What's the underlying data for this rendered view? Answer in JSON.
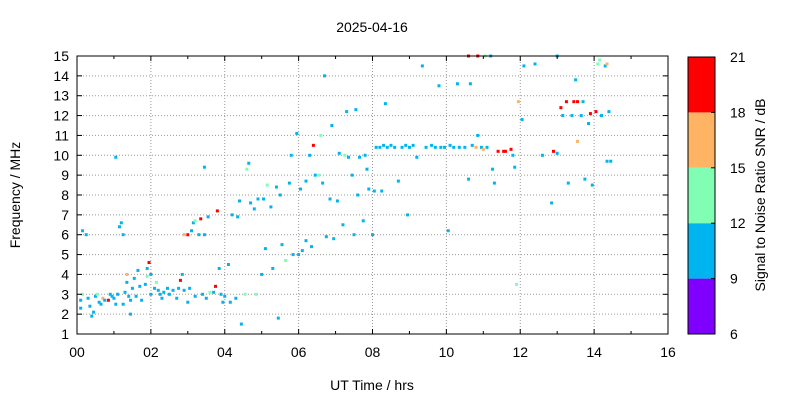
{
  "chart_data": {
    "type": "scatter",
    "title": "2025-04-16",
    "xlabel": "UT Time / hrs",
    "ylabel": "Frequency / MHz",
    "xlim": [
      0,
      16
    ],
    "ylim": [
      1,
      15
    ],
    "xticks": [
      "00",
      "02",
      "04",
      "06",
      "08",
      "10",
      "12",
      "14",
      "16"
    ],
    "yticks": [
      "1",
      "2",
      "3",
      "4",
      "5",
      "6",
      "7",
      "8",
      "9",
      "10",
      "11",
      "12",
      "13",
      "14",
      "15"
    ],
    "grid": true,
    "colorbar": {
      "label": "Signal to Noise Ratio SNR / dB",
      "range": [
        6,
        21
      ],
      "ticks": [
        "6",
        "9",
        "12",
        "15",
        "18",
        "21"
      ],
      "bands": [
        {
          "from": 6,
          "to": 9,
          "color": "#8000ff"
        },
        {
          "from": 9,
          "to": 12,
          "color": "#00b4f0"
        },
        {
          "from": 12,
          "to": 15,
          "color": "#80ffb4"
        },
        {
          "from": 15,
          "to": 18,
          "color": "#ffb464"
        },
        {
          "from": 18,
          "to": 21,
          "color": "#ff0000"
        }
      ]
    },
    "points": [
      [
        0.1,
        2.3,
        10
      ],
      [
        0.1,
        2.7,
        10
      ],
      [
        0.15,
        3.0,
        13
      ],
      [
        0.15,
        6.2,
        10
      ],
      [
        0.25,
        6.0,
        10
      ],
      [
        0.3,
        2.8,
        10
      ],
      [
        0.35,
        2.4,
        10
      ],
      [
        0.4,
        1.9,
        10
      ],
      [
        0.45,
        2.1,
        10
      ],
      [
        0.5,
        2.9,
        10
      ],
      [
        0.55,
        3.0,
        13
      ],
      [
        0.6,
        2.6,
        10
      ],
      [
        0.65,
        2.5,
        10
      ],
      [
        0.7,
        2.8,
        16
      ],
      [
        0.75,
        2.7,
        10
      ],
      [
        0.85,
        2.7,
        19
      ],
      [
        0.9,
        3.0,
        10
      ],
      [
        0.95,
        2.9,
        10
      ],
      [
        1.0,
        2.8,
        10
      ],
      [
        1.05,
        2.5,
        10
      ],
      [
        1.05,
        9.9,
        10
      ],
      [
        1.1,
        3.0,
        10
      ],
      [
        1.15,
        6.4,
        10
      ],
      [
        1.2,
        6.6,
        10
      ],
      [
        1.25,
        2.5,
        10
      ],
      [
        1.25,
        6.0,
        10
      ],
      [
        1.3,
        3.1,
        10
      ],
      [
        1.35,
        3.6,
        10
      ],
      [
        1.35,
        4.0,
        16
      ],
      [
        1.4,
        2.9,
        10
      ],
      [
        1.45,
        2.0,
        10
      ],
      [
        1.45,
        2.7,
        10
      ],
      [
        1.5,
        3.3,
        10
      ],
      [
        1.55,
        3.8,
        10
      ],
      [
        1.6,
        2.9,
        10
      ],
      [
        1.65,
        4.2,
        10
      ],
      [
        1.7,
        3.4,
        10
      ],
      [
        1.75,
        2.7,
        10
      ],
      [
        1.85,
        3.5,
        10
      ],
      [
        1.9,
        3.9,
        13
      ],
      [
        1.9,
        4.3,
        10
      ],
      [
        1.95,
        4.6,
        19
      ],
      [
        2.0,
        3.0,
        10
      ],
      [
        2.0,
        4.0,
        10
      ],
      [
        2.1,
        3.3,
        10
      ],
      [
        2.15,
        3.6,
        13
      ],
      [
        2.2,
        3.2,
        10
      ],
      [
        2.25,
        3.0,
        10
      ],
      [
        2.3,
        2.8,
        10
      ],
      [
        2.35,
        3.1,
        10
      ],
      [
        2.45,
        3.3,
        10
      ],
      [
        2.5,
        3.0,
        10
      ],
      [
        2.6,
        3.2,
        10
      ],
      [
        2.7,
        2.8,
        10
      ],
      [
        2.75,
        3.3,
        10
      ],
      [
        2.8,
        3.7,
        19
      ],
      [
        2.85,
        4.0,
        10
      ],
      [
        2.9,
        3.2,
        10
      ],
      [
        2.9,
        6.0,
        16
      ],
      [
        3.0,
        6.0,
        19
      ],
      [
        3.0,
        2.6,
        10
      ],
      [
        3.05,
        3.3,
        10
      ],
      [
        3.1,
        6.2,
        10
      ],
      [
        3.15,
        6.6,
        10
      ],
      [
        3.2,
        2.9,
        10
      ],
      [
        3.2,
        6.7,
        13
      ],
      [
        3.3,
        6.0,
        10
      ],
      [
        3.35,
        6.8,
        19
      ],
      [
        3.4,
        3.0,
        10
      ],
      [
        3.45,
        6.0,
        10
      ],
      [
        3.45,
        9.4,
        10
      ],
      [
        3.5,
        2.8,
        10
      ],
      [
        3.55,
        6.9,
        10
      ],
      [
        3.6,
        3.1,
        13
      ],
      [
        3.7,
        3.1,
        10
      ],
      [
        3.75,
        3.4,
        19
      ],
      [
        3.8,
        7.2,
        19
      ],
      [
        3.85,
        4.3,
        10
      ],
      [
        3.9,
        3.0,
        10
      ],
      [
        3.95,
        2.6,
        10
      ],
      [
        4.0,
        2.9,
        10
      ],
      [
        4.1,
        4.5,
        10
      ],
      [
        4.15,
        2.6,
        10
      ],
      [
        4.2,
        7.0,
        10
      ],
      [
        4.3,
        2.8,
        10
      ],
      [
        4.35,
        6.9,
        10
      ],
      [
        4.4,
        7.7,
        10
      ],
      [
        4.45,
        1.5,
        10
      ],
      [
        4.55,
        3.0,
        13
      ],
      [
        4.6,
        9.3,
        13
      ],
      [
        4.65,
        9.6,
        10
      ],
      [
        4.7,
        7.6,
        10
      ],
      [
        4.8,
        7.3,
        10
      ],
      [
        4.85,
        3.0,
        13
      ],
      [
        4.9,
        7.8,
        10
      ],
      [
        5.0,
        4.0,
        10
      ],
      [
        5.05,
        7.8,
        10
      ],
      [
        5.1,
        5.3,
        10
      ],
      [
        5.15,
        8.5,
        13
      ],
      [
        5.25,
        7.4,
        10
      ],
      [
        5.3,
        4.3,
        10
      ],
      [
        5.4,
        8.4,
        10
      ],
      [
        5.45,
        1.8,
        10
      ],
      [
        5.5,
        8.0,
        10
      ],
      [
        5.55,
        5.5,
        10
      ],
      [
        5.65,
        4.7,
        13
      ],
      [
        5.75,
        8.6,
        10
      ],
      [
        5.8,
        10.0,
        10
      ],
      [
        5.85,
        5.0,
        10
      ],
      [
        5.95,
        11.1,
        10
      ],
      [
        6.0,
        5.0,
        10
      ],
      [
        6.05,
        8.3,
        10
      ],
      [
        6.1,
        5.2,
        10
      ],
      [
        6.2,
        5.7,
        10
      ],
      [
        6.2,
        8.7,
        10
      ],
      [
        6.3,
        10.0,
        10
      ],
      [
        6.35,
        5.4,
        10
      ],
      [
        6.4,
        10.5,
        19
      ],
      [
        6.45,
        9.0,
        10
      ],
      [
        6.55,
        9.0,
        13
      ],
      [
        6.6,
        11.0,
        13
      ],
      [
        6.65,
        8.6,
        10
      ],
      [
        6.7,
        14.0,
        10
      ],
      [
        6.75,
        5.9,
        10
      ],
      [
        6.85,
        7.8,
        10
      ],
      [
        6.9,
        11.5,
        10
      ],
      [
        6.95,
        5.8,
        10
      ],
      [
        7.05,
        7.7,
        10
      ],
      [
        7.1,
        10.1,
        10
      ],
      [
        7.2,
        6.5,
        10
      ],
      [
        7.25,
        10.0,
        13
      ],
      [
        7.3,
        12.2,
        10
      ],
      [
        7.35,
        9.9,
        10
      ],
      [
        7.45,
        9.0,
        10
      ],
      [
        7.5,
        6.0,
        10
      ],
      [
        7.55,
        12.3,
        10
      ],
      [
        7.6,
        8.0,
        10
      ],
      [
        7.65,
        9.9,
        10
      ],
      [
        7.75,
        6.7,
        10
      ],
      [
        7.8,
        10.0,
        10
      ],
      [
        7.85,
        9.3,
        10
      ],
      [
        7.9,
        8.3,
        10
      ],
      [
        8.0,
        6.0,
        10
      ],
      [
        8.05,
        8.2,
        10
      ],
      [
        8.1,
        10.4,
        10
      ],
      [
        8.2,
        10.4,
        10
      ],
      [
        8.25,
        8.2,
        10
      ],
      [
        8.3,
        10.5,
        10
      ],
      [
        8.35,
        12.6,
        10
      ],
      [
        8.4,
        10.4,
        10
      ],
      [
        8.5,
        10.5,
        10
      ],
      [
        8.6,
        10.4,
        10
      ],
      [
        8.7,
        8.7,
        10
      ],
      [
        8.8,
        10.4,
        10
      ],
      [
        8.9,
        10.5,
        10
      ],
      [
        8.95,
        7.0,
        10
      ],
      [
        9.0,
        10.4,
        10
      ],
      [
        9.1,
        10.5,
        10
      ],
      [
        9.2,
        9.9,
        10
      ],
      [
        9.35,
        14.5,
        10
      ],
      [
        9.45,
        10.4,
        10
      ],
      [
        9.6,
        10.5,
        10
      ],
      [
        9.7,
        10.4,
        10
      ],
      [
        9.8,
        13.5,
        10
      ],
      [
        9.85,
        10.4,
        10
      ],
      [
        9.95,
        10.4,
        10
      ],
      [
        10.05,
        6.2,
        10
      ],
      [
        10.1,
        10.5,
        10
      ],
      [
        10.2,
        10.4,
        10
      ],
      [
        10.3,
        13.6,
        10
      ],
      [
        10.35,
        10.4,
        10
      ],
      [
        10.5,
        10.4,
        10
      ],
      [
        10.6,
        8.8,
        10
      ],
      [
        10.6,
        15.0,
        19
      ],
      [
        10.65,
        13.6,
        10
      ],
      [
        10.7,
        10.5,
        10
      ],
      [
        10.8,
        10.4,
        16
      ],
      [
        10.85,
        11.0,
        10
      ],
      [
        10.85,
        15.0,
        19
      ],
      [
        10.95,
        10.4,
        10
      ],
      [
        11.0,
        10.3,
        16
      ],
      [
        11.05,
        15.0,
        13
      ],
      [
        11.1,
        10.4,
        10
      ],
      [
        11.2,
        15.0,
        10
      ],
      [
        11.25,
        9.3,
        10
      ],
      [
        11.3,
        8.6,
        10
      ],
      [
        11.4,
        10.2,
        19
      ],
      [
        11.55,
        10.2,
        19
      ],
      [
        11.6,
        10.2,
        19
      ],
      [
        11.75,
        10.3,
        19
      ],
      [
        11.8,
        10.0,
        10
      ],
      [
        11.85,
        9.4,
        10
      ],
      [
        11.9,
        3.5,
        13
      ],
      [
        11.95,
        12.7,
        16
      ],
      [
        12.05,
        11.8,
        10
      ],
      [
        12.1,
        14.5,
        10
      ],
      [
        12.4,
        14.6,
        10
      ],
      [
        12.6,
        10.0,
        10
      ],
      [
        12.85,
        7.6,
        10
      ],
      [
        12.9,
        10.2,
        19
      ],
      [
        13.0,
        15.0,
        10
      ],
      [
        13.0,
        10.1,
        10
      ],
      [
        13.1,
        12.4,
        19
      ],
      [
        13.15,
        12.0,
        10
      ],
      [
        13.25,
        12.7,
        19
      ],
      [
        13.3,
        8.6,
        10
      ],
      [
        13.4,
        12.0,
        10
      ],
      [
        13.45,
        12.7,
        19
      ],
      [
        13.5,
        13.8,
        10
      ],
      [
        13.55,
        12.7,
        19
      ],
      [
        13.55,
        10.7,
        16
      ],
      [
        13.65,
        12.0,
        10
      ],
      [
        13.7,
        12.7,
        10
      ],
      [
        13.75,
        8.8,
        10
      ],
      [
        13.85,
        11.6,
        10
      ],
      [
        13.9,
        12.1,
        19
      ],
      [
        13.95,
        8.5,
        10
      ],
      [
        14.05,
        12.2,
        19
      ],
      [
        14.1,
        14.6,
        13
      ],
      [
        14.15,
        14.8,
        13
      ],
      [
        14.2,
        12.0,
        10
      ],
      [
        14.3,
        14.5,
        10
      ],
      [
        14.35,
        14.6,
        16
      ],
      [
        14.35,
        9.7,
        10
      ],
      [
        14.4,
        12.2,
        10
      ],
      [
        14.45,
        9.7,
        10
      ]
    ]
  }
}
